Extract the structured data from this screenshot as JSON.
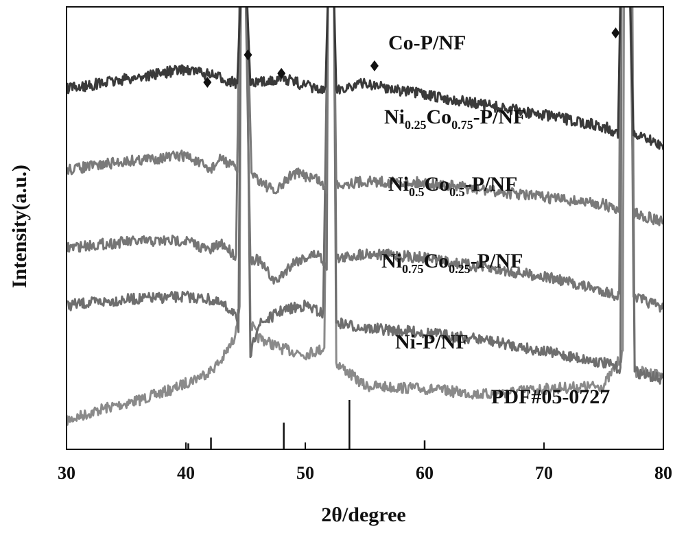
{
  "chart_data": {
    "type": "line",
    "xlabel": "2θ/degree",
    "ylabel": "Intensity(a.u.)",
    "xlim": [
      30,
      80
    ],
    "xticks": [
      30,
      40,
      50,
      60,
      70,
      80
    ],
    "yticks_shown": false,
    "grid": false,
    "legend": "none (series labelled directly on plot)",
    "reference_label": "PDF#05-0727",
    "reference_lines": [
      {
        "x": 40.2,
        "height": 0.12
      },
      {
        "x": 42.1,
        "height": 0.24
      },
      {
        "x": 48.2,
        "height": 0.54
      },
      {
        "x": 53.7,
        "height": 1.0
      },
      {
        "x": 60.0,
        "height": 0.18
      }
    ],
    "diamond_markers": [
      41.8,
      45.2,
      48.0,
      55.8,
      76.0
    ],
    "series": [
      {
        "name": "Co-P/NF",
        "label_parts": [
          {
            "t": "Co-P/NF"
          }
        ],
        "color": "#3a3a3a",
        "points": [
          [
            30,
            0.0
          ],
          [
            35,
            -0.7
          ],
          [
            40,
            -1.4
          ],
          [
            42,
            -1.0
          ],
          [
            44.3,
            -0.4
          ],
          [
            44.6,
            30
          ],
          [
            45.1,
            30
          ],
          [
            45.4,
            -0.3
          ],
          [
            48,
            -0.8
          ],
          [
            51.7,
            0.2
          ],
          [
            51.9,
            30
          ],
          [
            52.4,
            30
          ],
          [
            52.6,
            0.0
          ],
          [
            55,
            -0.4
          ],
          [
            60,
            0.4
          ],
          [
            65,
            1.1
          ],
          [
            70,
            1.8
          ],
          [
            75,
            2.6
          ],
          [
            76.2,
            3.0
          ],
          [
            76.4,
            30
          ],
          [
            77.2,
            30
          ],
          [
            77.5,
            3.2
          ],
          [
            80,
            3.9
          ]
        ]
      },
      {
        "name": "Ni0.25Co0.75-P/NF",
        "label_parts": [
          {
            "t": "Ni"
          },
          {
            "t": "0.25",
            "sub": true
          },
          {
            "t": "Co"
          },
          {
            "t": "0.75",
            "sub": true
          },
          {
            "t": "-P/NF"
          }
        ],
        "color": "#7a7a7a",
        "points": [
          [
            30,
            5.6
          ],
          [
            35,
            5.0
          ],
          [
            40,
            4.6
          ],
          [
            42,
            5.6
          ],
          [
            43,
            4.8
          ],
          [
            44.3,
            5.6
          ],
          [
            44.6,
            30
          ],
          [
            45.1,
            30
          ],
          [
            45.5,
            5.8
          ],
          [
            46,
            6.2
          ],
          [
            47.5,
            7.2
          ],
          [
            49,
            5.8
          ],
          [
            51,
            6.2
          ],
          [
            51.8,
            7.0
          ],
          [
            51.9,
            30
          ],
          [
            52.4,
            30
          ],
          [
            52.6,
            6.6
          ],
          [
            55,
            6.4
          ],
          [
            60,
            6.5
          ],
          [
            65,
            7.0
          ],
          [
            70,
            7.5
          ],
          [
            75,
            8.0
          ],
          [
            76.3,
            8.4
          ],
          [
            76.4,
            30
          ],
          [
            77.2,
            30
          ],
          [
            77.5,
            8.6
          ],
          [
            80,
            9.2
          ]
        ]
      },
      {
        "name": "Ni0.5Co0.5-P/NF",
        "label_parts": [
          {
            "t": "Ni"
          },
          {
            "t": "0.5",
            "sub": true
          },
          {
            "t": "Co"
          },
          {
            "t": "0.5",
            "sub": true
          },
          {
            "t": "-P/NF"
          }
        ],
        "color": "#757575",
        "points": [
          [
            30,
            11.0
          ],
          [
            35,
            10.6
          ],
          [
            40,
            10.5
          ],
          [
            42,
            11.2
          ],
          [
            43,
            10.7
          ],
          [
            44.2,
            11.6
          ],
          [
            44.5,
            30
          ],
          [
            45.0,
            30
          ],
          [
            45.4,
            11.8
          ],
          [
            46,
            11.8
          ],
          [
            47.5,
            13.4
          ],
          [
            49,
            12.0
          ],
          [
            51,
            11.4
          ],
          [
            51.8,
            12.2
          ],
          [
            51.9,
            30
          ],
          [
            52.4,
            30
          ],
          [
            52.6,
            11.8
          ],
          [
            55,
            11.4
          ],
          [
            60,
            11.7
          ],
          [
            65,
            12.4
          ],
          [
            70,
            13.0
          ],
          [
            75,
            14.0
          ],
          [
            76.3,
            14.4
          ],
          [
            76.5,
            30
          ],
          [
            77.3,
            30
          ],
          [
            77.5,
            14.4
          ],
          [
            80,
            15.2
          ]
        ]
      },
      {
        "name": "Ni0.75Co0.25-P/NF",
        "label_parts": [
          {
            "t": "Ni"
          },
          {
            "t": "0.75",
            "sub": true
          },
          {
            "t": "Co"
          },
          {
            "t": "0.25",
            "sub": true
          },
          {
            "t": "-P/NF"
          }
        ],
        "color": "#6e6e6e",
        "points": [
          [
            30,
            15.0
          ],
          [
            35,
            14.6
          ],
          [
            40,
            14.4
          ],
          [
            42,
            14.6
          ],
          [
            44,
            15.4
          ],
          [
            44.4,
            16.8
          ],
          [
            44.6,
            30
          ],
          [
            45.1,
            30
          ],
          [
            45.4,
            18.6
          ],
          [
            46,
            16.4
          ],
          [
            48,
            15.4
          ],
          [
            50,
            15.0
          ],
          [
            51.5,
            15.6
          ],
          [
            51.9,
            30
          ],
          [
            52.4,
            30
          ],
          [
            52.6,
            16.2
          ],
          [
            55,
            16.6
          ],
          [
            60,
            16.9
          ],
          [
            65,
            17.4
          ],
          [
            70,
            18.2
          ],
          [
            75,
            19.0
          ],
          [
            76.4,
            19.4
          ],
          [
            76.5,
            30
          ],
          [
            77.3,
            30
          ],
          [
            77.6,
            19.6
          ],
          [
            80,
            20.2
          ]
        ]
      },
      {
        "name": "Ni-P/NF",
        "label_parts": [
          {
            "t": "Ni-P/NF"
          }
        ],
        "color": "#8a8a8a",
        "points": [
          [
            30,
            23.0
          ],
          [
            33,
            22.2
          ],
          [
            36,
            21.6
          ],
          [
            39,
            20.8
          ],
          [
            41,
            20.0
          ],
          [
            42,
            19.6
          ],
          [
            43,
            18.8
          ],
          [
            44,
            17.4
          ],
          [
            44.5,
            15.0
          ],
          [
            44.6,
            30
          ],
          [
            45.1,
            30
          ],
          [
            45.4,
            16.2
          ],
          [
            46,
            17.2
          ],
          [
            48,
            18.0
          ],
          [
            50,
            18.4
          ],
          [
            51.6,
            18.0
          ],
          [
            51.9,
            30
          ],
          [
            52.4,
            30
          ],
          [
            52.6,
            19.0
          ],
          [
            55,
            20.6
          ],
          [
            60,
            20.8
          ],
          [
            65,
            21.2
          ],
          [
            70,
            20.8
          ],
          [
            75,
            20.6
          ],
          [
            76.6,
            18.4
          ],
          [
            76.7,
            30
          ],
          [
            77.4,
            30
          ],
          [
            77.6,
            19.6
          ],
          [
            80,
            19.8
          ]
        ]
      }
    ]
  }
}
